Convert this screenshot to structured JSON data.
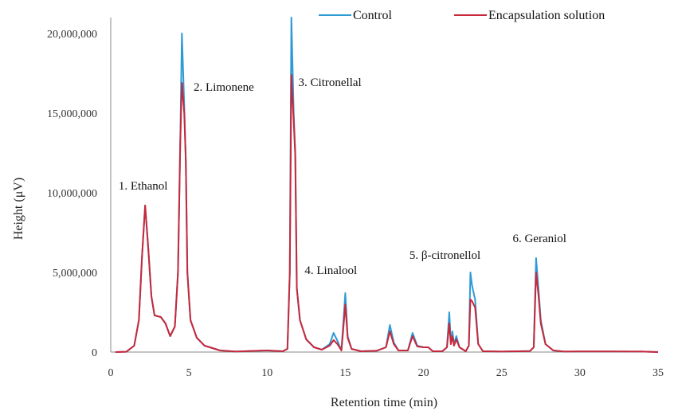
{
  "chart_data": {
    "type": "line",
    "xlabel": "Retention time (min)",
    "ylabel": "Height (μV)",
    "xlim": [
      0,
      35
    ],
    "ylim": [
      0,
      21000000
    ],
    "x_ticks": [
      0,
      5,
      10,
      15,
      20,
      25,
      30,
      35
    ],
    "x_tick_labels": [
      "0",
      "5",
      "10",
      "15",
      "20",
      "25",
      "30",
      "35"
    ],
    "y_ticks": [
      0,
      5000000,
      10000000,
      15000000,
      20000000
    ],
    "y_tick_labels": [
      "0",
      "5,000,000",
      "10,000,000",
      "15,000,000",
      "20,000,000"
    ],
    "grid": false,
    "legend_position": "top",
    "series": [
      {
        "name": "Control",
        "color": "#2e9bd6",
        "points": [
          [
            0.3,
            0
          ],
          [
            1.0,
            20000
          ],
          [
            1.5,
            400000
          ],
          [
            1.8,
            2000000
          ],
          [
            2.0,
            6000000
          ],
          [
            2.2,
            9200000
          ],
          [
            2.4,
            6500000
          ],
          [
            2.6,
            3500000
          ],
          [
            2.8,
            2300000
          ],
          [
            3.2,
            2200000
          ],
          [
            3.5,
            1800000
          ],
          [
            3.8,
            1000000
          ],
          [
            4.1,
            1600000
          ],
          [
            4.3,
            5000000
          ],
          [
            4.45,
            13500000
          ],
          [
            4.55,
            20000000
          ],
          [
            4.7,
            15500000
          ],
          [
            4.8,
            12000000
          ],
          [
            4.9,
            5000000
          ],
          [
            5.1,
            2000000
          ],
          [
            5.5,
            900000
          ],
          [
            6.0,
            400000
          ],
          [
            7.0,
            100000
          ],
          [
            8.0,
            30000
          ],
          [
            9.0,
            70000
          ],
          [
            10.0,
            100000
          ],
          [
            11.0,
            50000
          ],
          [
            11.3,
            200000
          ],
          [
            11.45,
            5000000
          ],
          [
            11.55,
            21000000
          ],
          [
            11.7,
            15000000
          ],
          [
            11.8,
            12500000
          ],
          [
            11.9,
            4000000
          ],
          [
            12.1,
            2000000
          ],
          [
            12.5,
            800000
          ],
          [
            13.0,
            300000
          ],
          [
            13.5,
            150000
          ],
          [
            14.0,
            500000
          ],
          [
            14.25,
            1200000
          ],
          [
            14.5,
            700000
          ],
          [
            14.75,
            100000
          ],
          [
            14.85,
            1500000
          ],
          [
            15.0,
            3700000
          ],
          [
            15.15,
            1000000
          ],
          [
            15.4,
            200000
          ],
          [
            16.0,
            50000
          ],
          [
            17.0,
            80000
          ],
          [
            17.6,
            300000
          ],
          [
            17.85,
            1700000
          ],
          [
            18.1,
            600000
          ],
          [
            18.4,
            100000
          ],
          [
            19.0,
            100000
          ],
          [
            19.3,
            1200000
          ],
          [
            19.6,
            400000
          ],
          [
            20.0,
            300000
          ],
          [
            20.3,
            300000
          ],
          [
            20.6,
            50000
          ],
          [
            21.2,
            50000
          ],
          [
            21.5,
            300000
          ],
          [
            21.65,
            2500000
          ],
          [
            21.75,
            600000
          ],
          [
            21.85,
            1300000
          ],
          [
            21.95,
            500000
          ],
          [
            22.1,
            1000000
          ],
          [
            22.3,
            300000
          ],
          [
            22.7,
            50000
          ],
          [
            22.9,
            400000
          ],
          [
            23.0,
            5000000
          ],
          [
            23.1,
            4200000
          ],
          [
            23.3,
            3300000
          ],
          [
            23.5,
            500000
          ],
          [
            23.8,
            50000
          ],
          [
            25.0,
            30000
          ],
          [
            26.0,
            50000
          ],
          [
            26.8,
            60000
          ],
          [
            27.05,
            300000
          ],
          [
            27.2,
            5900000
          ],
          [
            27.35,
            4000000
          ],
          [
            27.5,
            2000000
          ],
          [
            27.8,
            500000
          ],
          [
            28.3,
            100000
          ],
          [
            29.0,
            30000
          ],
          [
            30.0,
            40000
          ],
          [
            32.0,
            40000
          ],
          [
            34.0,
            30000
          ],
          [
            35.0,
            0
          ]
        ]
      },
      {
        "name": "Encapsulation solution",
        "color": "#c8283a",
        "points": [
          [
            0.3,
            0
          ],
          [
            1.0,
            20000
          ],
          [
            1.5,
            400000
          ],
          [
            1.8,
            2000000
          ],
          [
            2.0,
            6000000
          ],
          [
            2.2,
            9200000
          ],
          [
            2.4,
            6500000
          ],
          [
            2.6,
            3500000
          ],
          [
            2.8,
            2300000
          ],
          [
            3.2,
            2200000
          ],
          [
            3.5,
            1800000
          ],
          [
            3.8,
            1000000
          ],
          [
            4.1,
            1600000
          ],
          [
            4.3,
            5000000
          ],
          [
            4.45,
            13300000
          ],
          [
            4.55,
            16900000
          ],
          [
            4.7,
            15000000
          ],
          [
            4.8,
            12000000
          ],
          [
            4.9,
            5000000
          ],
          [
            5.1,
            2000000
          ],
          [
            5.5,
            900000
          ],
          [
            6.0,
            400000
          ],
          [
            7.0,
            100000
          ],
          [
            8.0,
            30000
          ],
          [
            9.0,
            70000
          ],
          [
            10.0,
            100000
          ],
          [
            11.0,
            50000
          ],
          [
            11.3,
            200000
          ],
          [
            11.45,
            5000000
          ],
          [
            11.55,
            17400000
          ],
          [
            11.7,
            14500000
          ],
          [
            11.8,
            12300000
          ],
          [
            11.9,
            4000000
          ],
          [
            12.1,
            2000000
          ],
          [
            12.5,
            800000
          ],
          [
            13.0,
            300000
          ],
          [
            13.5,
            150000
          ],
          [
            14.0,
            400000
          ],
          [
            14.25,
            750000
          ],
          [
            14.5,
            500000
          ],
          [
            14.75,
            100000
          ],
          [
            14.85,
            1200000
          ],
          [
            15.0,
            3000000
          ],
          [
            15.15,
            900000
          ],
          [
            15.4,
            200000
          ],
          [
            16.0,
            50000
          ],
          [
            17.0,
            80000
          ],
          [
            17.6,
            300000
          ],
          [
            17.85,
            1300000
          ],
          [
            18.1,
            500000
          ],
          [
            18.4,
            100000
          ],
          [
            19.0,
            100000
          ],
          [
            19.3,
            1000000
          ],
          [
            19.6,
            350000
          ],
          [
            20.0,
            300000
          ],
          [
            20.3,
            300000
          ],
          [
            20.6,
            50000
          ],
          [
            21.2,
            50000
          ],
          [
            21.5,
            300000
          ],
          [
            21.65,
            1800000
          ],
          [
            21.75,
            500000
          ],
          [
            21.85,
            1000000
          ],
          [
            21.95,
            400000
          ],
          [
            22.1,
            800000
          ],
          [
            22.3,
            300000
          ],
          [
            22.7,
            50000
          ],
          [
            22.9,
            400000
          ],
          [
            23.0,
            3300000
          ],
          [
            23.1,
            3200000
          ],
          [
            23.3,
            2800000
          ],
          [
            23.5,
            500000
          ],
          [
            23.8,
            50000
          ],
          [
            25.0,
            30000
          ],
          [
            26.0,
            50000
          ],
          [
            26.8,
            60000
          ],
          [
            27.05,
            300000
          ],
          [
            27.2,
            5000000
          ],
          [
            27.35,
            3600000
          ],
          [
            27.5,
            1800000
          ],
          [
            27.8,
            500000
          ],
          [
            28.3,
            100000
          ],
          [
            29.0,
            30000
          ],
          [
            30.0,
            40000
          ],
          [
            32.0,
            40000
          ],
          [
            34.0,
            30000
          ],
          [
            35.0,
            0
          ]
        ]
      }
    ],
    "annotations": [
      {
        "text": "1. Ethanol",
        "x": 0.5,
        "y": 10200000
      },
      {
        "text": "2. Limonene",
        "x": 5.3,
        "y": 16400000
      },
      {
        "text": "3. Citronellal",
        "x": 12.0,
        "y": 16700000
      },
      {
        "text": "4. Linalool",
        "x": 12.4,
        "y": 4900000
      },
      {
        "text": "5. β-citronellol",
        "x": 19.1,
        "y": 5850000
      },
      {
        "text": "6. Geraniol",
        "x": 25.7,
        "y": 6900000
      }
    ]
  }
}
